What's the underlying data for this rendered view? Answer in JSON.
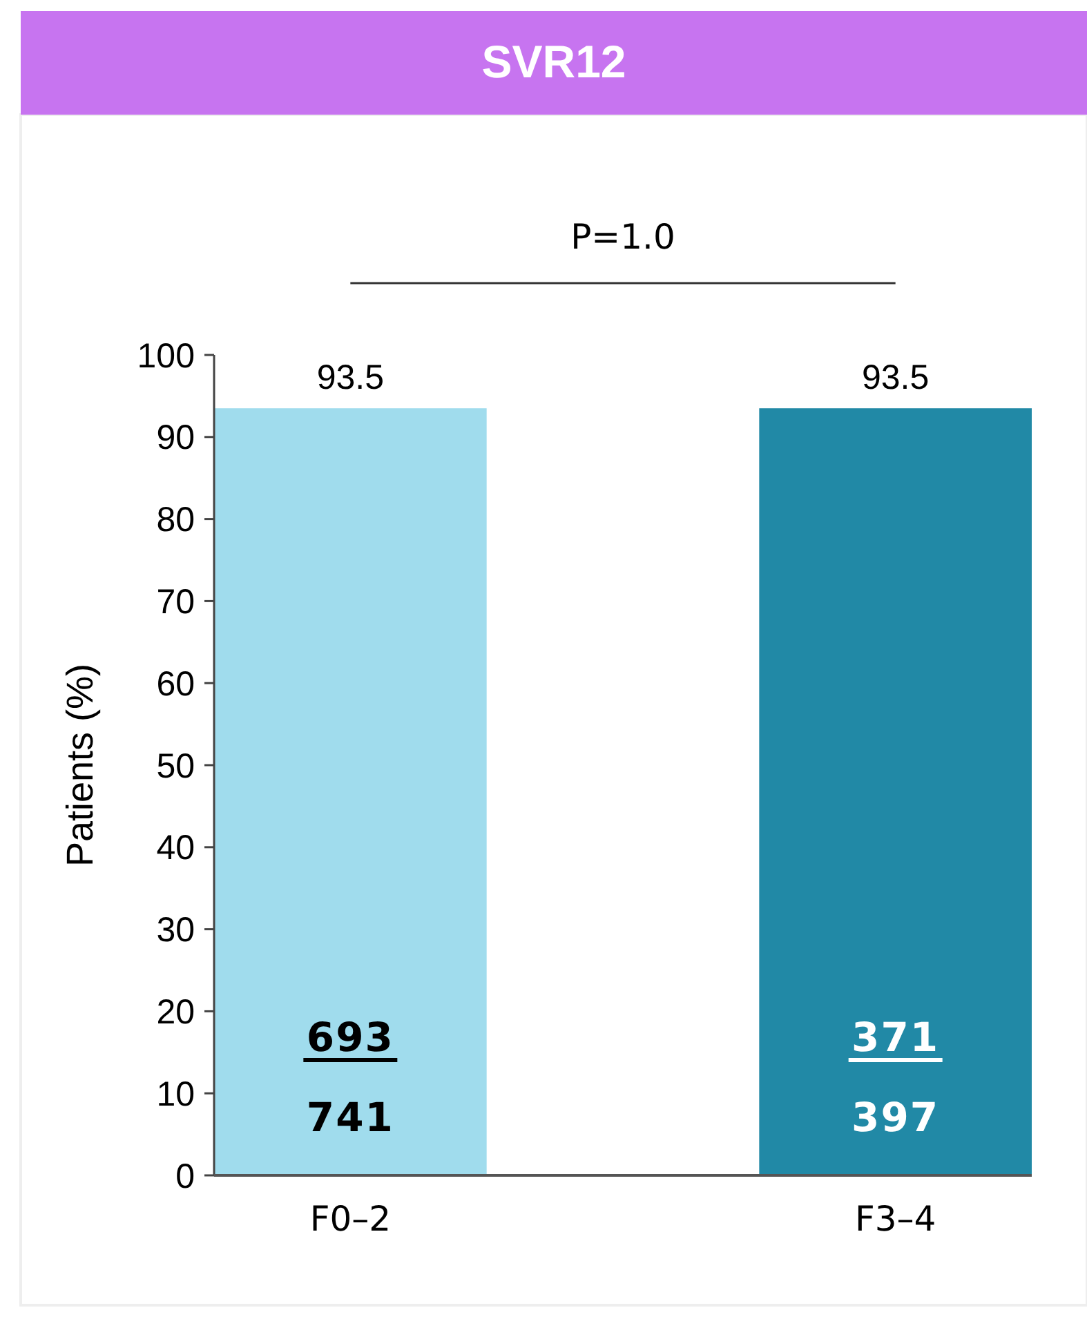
{
  "chart_data": {
    "type": "bar",
    "title": "SVR12",
    "ylabel": "Patients (%)",
    "categories": [
      "F0–2",
      "F3–4"
    ],
    "values": [
      93.5,
      93.5
    ],
    "colors": [
      "#a0dced",
      "#2189a6"
    ],
    "ylim": [
      0,
      100
    ],
    "yticks": [
      0,
      10,
      20,
      30,
      40,
      50,
      60,
      70,
      80,
      90,
      100
    ],
    "data_labels": true,
    "grid": false,
    "annotations": [
      "P=1.0",
      "693",
      "741",
      "371",
      "397"
    ]
  }
}
